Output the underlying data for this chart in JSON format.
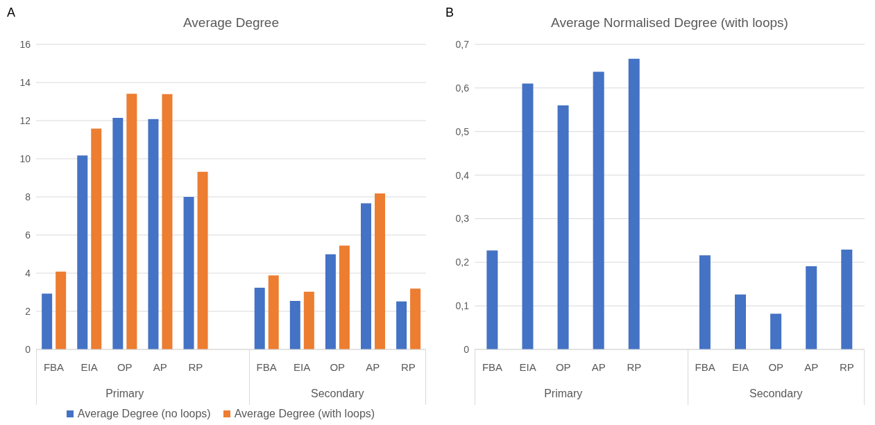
{
  "chart_data": [
    {
      "type": "bar",
      "title": "Average Degree",
      "categories": [
        "FBA",
        "EIA",
        "OP",
        "AP",
        "RP",
        null,
        "FBA",
        "EIA",
        "OP",
        "AP",
        "RP"
      ],
      "series": [
        {
          "name": "Average Degree (no loops)",
          "color": "#4472c4",
          "values": [
            2.93,
            10.17,
            12.15,
            12.08,
            8.0,
            null,
            3.24,
            2.55,
            4.99,
            7.66,
            2.52
          ]
        },
        {
          "name": "Average Degree (with loops)",
          "color": "#ed7d31",
          "values": [
            4.08,
            11.58,
            13.41,
            13.39,
            9.32,
            null,
            3.88,
            3.03,
            5.45,
            8.18,
            3.19
          ]
        }
      ],
      "ylim": [
        0,
        16
      ],
      "yticks": [
        0,
        2,
        4,
        6,
        8,
        10,
        12,
        14,
        16
      ],
      "grid": "y",
      "legend": "bottom",
      "annotations": [
        "A",
        "Primary",
        "Secondary"
      ]
    },
    {
      "type": "bar",
      "title": "Average Normalised Degree (with loops)",
      "categories": [
        "FBA",
        "EIA",
        "OP",
        "AP",
        "RP",
        null,
        "FBA",
        "EIA",
        "OP",
        "AP",
        "RP"
      ],
      "series": [
        {
          "color": "#4472c4",
          "values": [
            0.227,
            0.61,
            0.56,
            0.637,
            0.667,
            null,
            0.216,
            0.126,
            0.082,
            0.191,
            0.229
          ]
        }
      ],
      "ylim": [
        0,
        0.7
      ],
      "yticks": [
        0,
        {
          "value": 0.1,
          "label": "0,1"
        },
        {
          "value": 0.2,
          "label": "0,2"
        },
        {
          "value": 0.3,
          "label": "0,3"
        },
        {
          "value": 0.4,
          "label": "0,4"
        },
        {
          "value": 0.5,
          "label": "0,5"
        },
        {
          "value": 0.6,
          "label": "0,6"
        },
        {
          "value": 0.7,
          "label": "0,7"
        }
      ],
      "grid": "y",
      "annotations": [
        "B",
        "Primary",
        "Secondary"
      ]
    }
  ]
}
